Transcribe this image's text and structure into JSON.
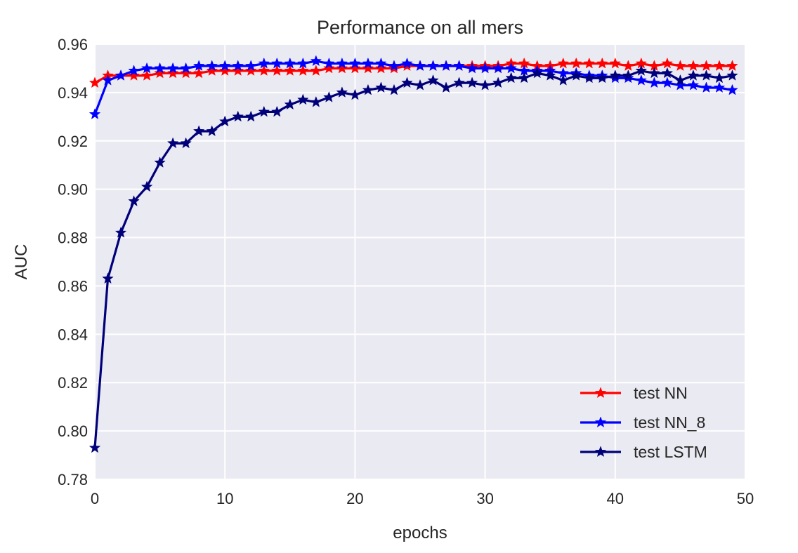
{
  "chart_data": {
    "type": "line",
    "title": "Performance on all mers",
    "xlabel": "epochs",
    "ylabel": "AUC",
    "xlim": [
      0,
      50
    ],
    "ylim": [
      0.78,
      0.96
    ],
    "xticks": [
      0,
      10,
      20,
      30,
      40,
      50
    ],
    "yticks": [
      0.78,
      0.8,
      0.82,
      0.84,
      0.86,
      0.88,
      0.9,
      0.92,
      0.94,
      0.96
    ],
    "grid": true,
    "marker": "star",
    "legend_position": "lower-right",
    "x": [
      0,
      1,
      2,
      3,
      4,
      5,
      6,
      7,
      8,
      9,
      10,
      11,
      12,
      13,
      14,
      15,
      16,
      17,
      18,
      19,
      20,
      21,
      22,
      23,
      24,
      25,
      26,
      27,
      28,
      29,
      30,
      31,
      32,
      33,
      34,
      35,
      36,
      37,
      38,
      39,
      40,
      41,
      42,
      43,
      44,
      45,
      46,
      47,
      48,
      49
    ],
    "series": [
      {
        "name": "test NN",
        "color": "#ff0000",
        "values": [
          0.944,
          0.947,
          0.947,
          0.947,
          0.947,
          0.948,
          0.948,
          0.948,
          0.948,
          0.949,
          0.949,
          0.949,
          0.949,
          0.949,
          0.949,
          0.949,
          0.949,
          0.949,
          0.95,
          0.95,
          0.95,
          0.95,
          0.95,
          0.95,
          0.951,
          0.951,
          0.951,
          0.951,
          0.951,
          0.951,
          0.951,
          0.951,
          0.952,
          0.952,
          0.951,
          0.951,
          0.952,
          0.952,
          0.952,
          0.952,
          0.952,
          0.951,
          0.952,
          0.951,
          0.952,
          0.951,
          0.951,
          0.951,
          0.951,
          0.951
        ]
      },
      {
        "name": "test NN_8",
        "color": "#0000ff",
        "values": [
          0.931,
          0.945,
          0.947,
          0.949,
          0.95,
          0.95,
          0.95,
          0.95,
          0.951,
          0.951,
          0.951,
          0.951,
          0.951,
          0.952,
          0.952,
          0.952,
          0.952,
          0.953,
          0.952,
          0.952,
          0.952,
          0.952,
          0.952,
          0.951,
          0.952,
          0.951,
          0.951,
          0.951,
          0.951,
          0.95,
          0.95,
          0.95,
          0.95,
          0.949,
          0.949,
          0.949,
          0.948,
          0.948,
          0.947,
          0.947,
          0.946,
          0.946,
          0.945,
          0.944,
          0.944,
          0.943,
          0.943,
          0.942,
          0.942,
          0.941
        ]
      },
      {
        "name": "test LSTM",
        "color": "#00007a",
        "values": [
          0.793,
          0.863,
          0.882,
          0.895,
          0.901,
          0.911,
          0.919,
          0.919,
          0.924,
          0.924,
          0.928,
          0.93,
          0.93,
          0.932,
          0.932,
          0.935,
          0.937,
          0.936,
          0.938,
          0.94,
          0.939,
          0.941,
          0.942,
          0.941,
          0.944,
          0.943,
          0.945,
          0.942,
          0.944,
          0.944,
          0.943,
          0.944,
          0.946,
          0.946,
          0.948,
          0.947,
          0.945,
          0.947,
          0.946,
          0.946,
          0.947,
          0.947,
          0.949,
          0.948,
          0.948,
          0.945,
          0.947,
          0.947,
          0.946,
          0.947
        ]
      }
    ]
  }
}
